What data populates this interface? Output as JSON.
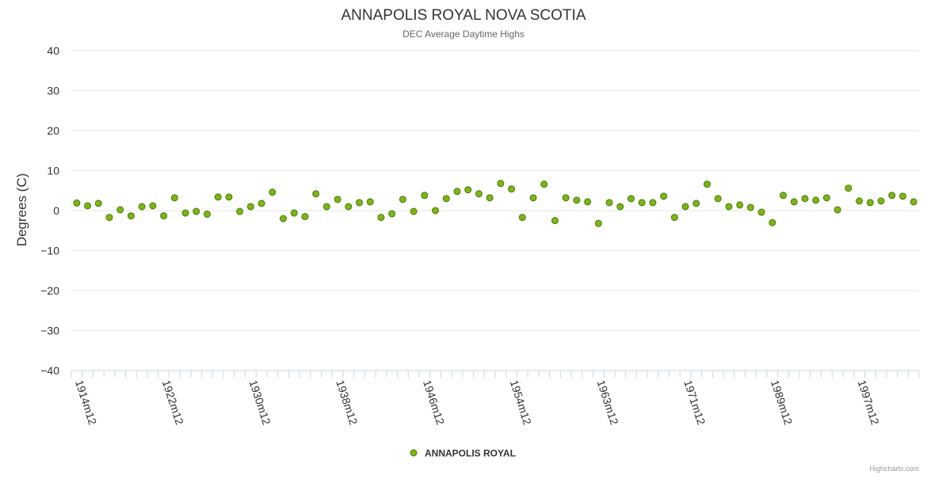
{
  "chart_data": {
    "type": "scatter",
    "title": "ANNAPOLIS ROYAL NOVA SCOTIA",
    "subtitle": "DEC Average Daytime Highs",
    "ylabel": "Degrees (C)",
    "ylim": [
      -40,
      40
    ],
    "yticks": [
      -40,
      -30,
      -20,
      -10,
      0,
      10,
      20,
      30,
      40
    ],
    "xtick_labels": [
      "1914m12",
      "1922m12",
      "1930m12",
      "1938m12",
      "1946m12",
      "1954m12",
      "1963m12",
      "1971m12",
      "1989m12",
      "1997m12"
    ],
    "xtick_label_indices": [
      0,
      8,
      16,
      24,
      32,
      40,
      48,
      56,
      64,
      72
    ],
    "point_count": 78,
    "grid": true,
    "legend_position": "bottom-center",
    "series": [
      {
        "name": "ANNAPOLIS ROYAL",
        "color": "#7cb518",
        "values": [
          1.9,
          1.2,
          1.8,
          -1.7,
          0.2,
          -1.3,
          1.0,
          1.2,
          -1.3,
          3.2,
          -0.6,
          -0.2,
          -0.9,
          3.4,
          3.4,
          -0.2,
          1.0,
          1.8,
          4.6,
          -2.0,
          -0.6,
          -1.5,
          4.2,
          1.0,
          2.8,
          1.0,
          2.0,
          2.2,
          -1.7,
          -0.8,
          2.8,
          -0.2,
          3.8,
          0.0,
          3.0,
          4.8,
          5.2,
          4.2,
          3.2,
          6.8,
          5.4,
          -1.7,
          3.2,
          6.6,
          -2.5,
          3.2,
          2.6,
          2.2,
          -3.2,
          2.0,
          1.0,
          3.0,
          2.0,
          2.0,
          3.6,
          -1.7,
          1.0,
          1.8,
          6.6,
          3.0,
          1.0,
          1.4,
          0.8,
          -0.4,
          -3.0,
          3.8,
          2.2,
          3.0,
          2.6,
          3.2,
          0.2,
          5.6,
          2.4,
          2.0,
          2.4,
          3.8,
          3.6,
          2.2
        ]
      }
    ]
  },
  "credits": "Highcharts.com"
}
